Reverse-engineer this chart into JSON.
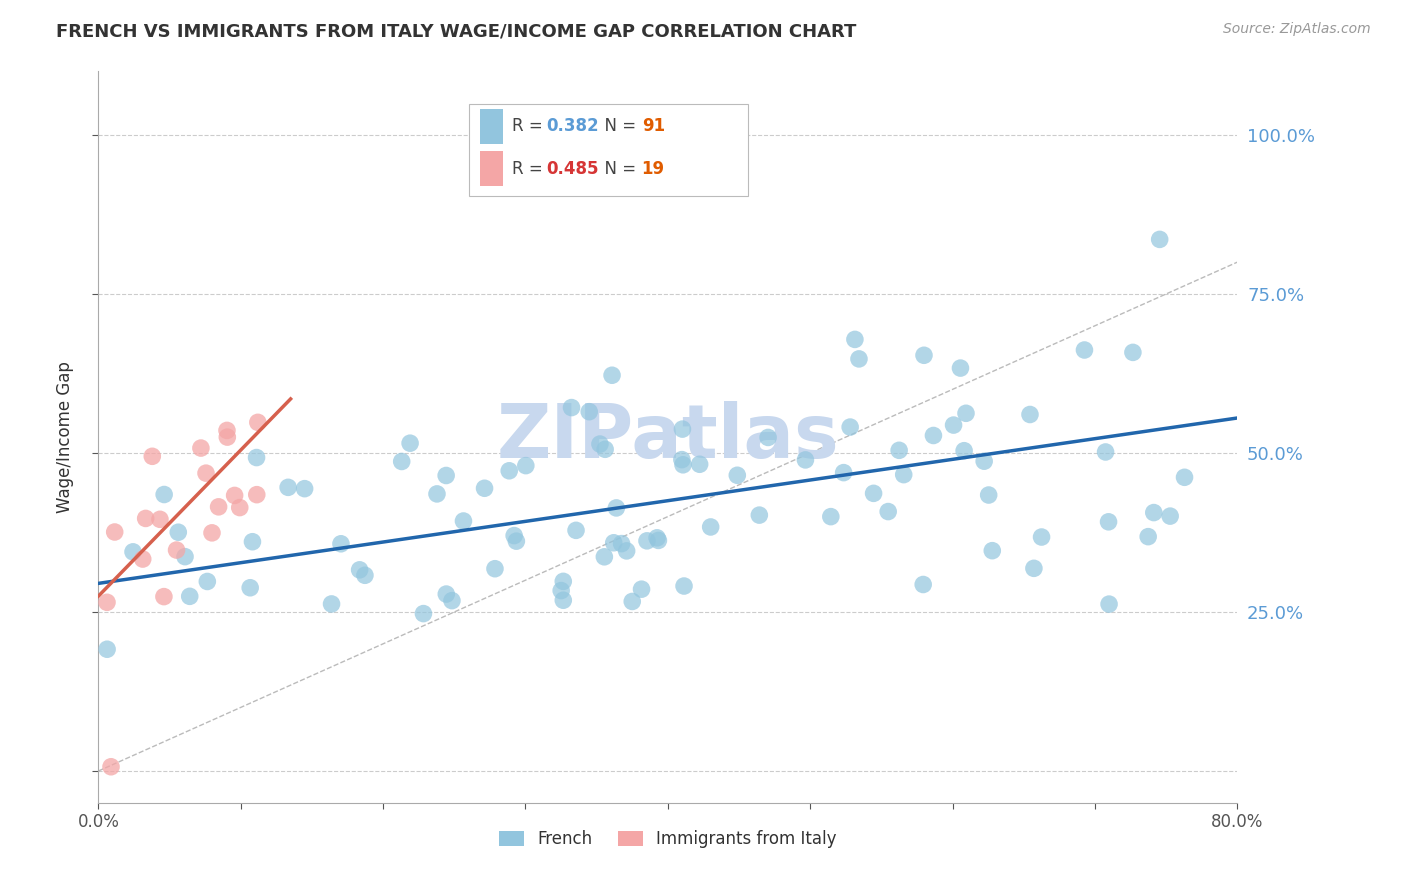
{
  "title": "FRENCH VS IMMIGRANTS FROM ITALY WAGE/INCOME GAP CORRELATION CHART",
  "source": "Source: ZipAtlas.com",
  "ylabel": "Wage/Income Gap",
  "xlim": [
    0.0,
    0.8
  ],
  "ylim": [
    -0.05,
    1.1
  ],
  "blue_R": 0.382,
  "blue_N": 91,
  "pink_R": 0.485,
  "pink_N": 19,
  "blue_color": "#92c5de",
  "pink_color": "#f4a6a6",
  "blue_line_color": "#2166ac",
  "pink_line_color": "#d6604d",
  "ref_line_color": "#bbbbbb",
  "grid_color": "#cccccc",
  "right_tick_color": "#5b9bd5",
  "watermark": "ZIPatlas",
  "watermark_color": "#c8d8ee",
  "legend_label_blue": "French",
  "legend_label_pink": "Immigrants from Italy",
  "blue_R_color": "#5b9bd5",
  "blue_N_color": "#e05c00",
  "pink_R_color": "#d63535",
  "pink_N_color": "#e05c00",
  "blue_line_x0": 0.0,
  "blue_line_x1": 0.8,
  "blue_line_y0": 0.295,
  "blue_line_y1": 0.555,
  "pink_line_x0": 0.0,
  "pink_line_x1": 0.135,
  "pink_line_y0": 0.275,
  "pink_line_y1": 0.585
}
